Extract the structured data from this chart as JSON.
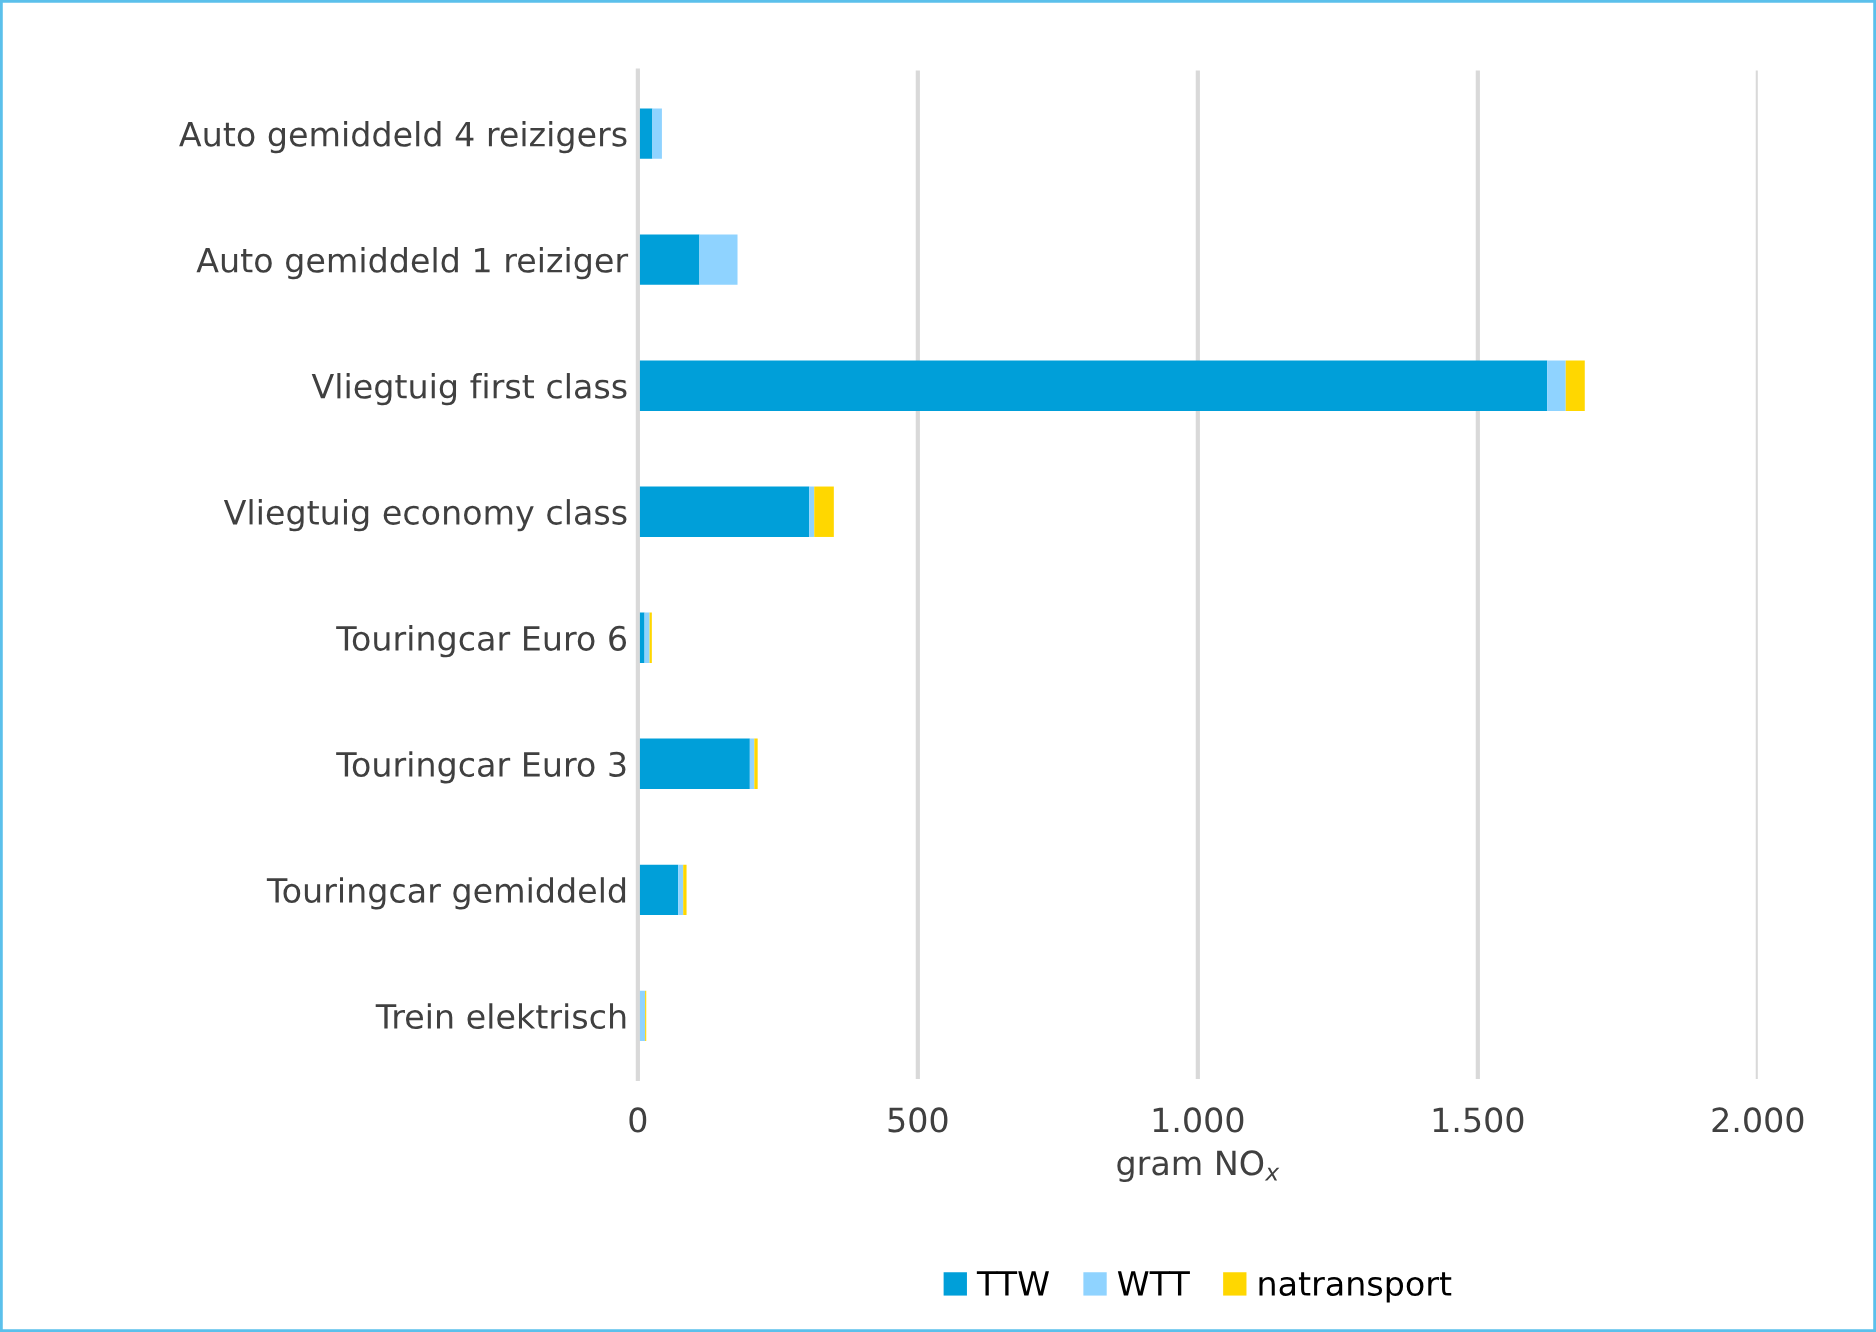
{
  "chart_data": {
    "type": "bar",
    "orientation": "horizontal",
    "stacked": true,
    "xlabel": "gram NO$_{x}$",
    "categories": [
      "Auto gemiddeld 4 reizigers",
      "Auto gemiddeld 1 reiziger",
      "Vliegtuig first class",
      "Vliegtuig economy class",
      "Touringcar Euro 6",
      "Touringcar Euro 3",
      "Touringcar gemiddeld",
      "Trein elektrisch"
    ],
    "series": [
      {
        "name": "TTW",
        "color": "#009fd9",
        "values": [
          26,
          110,
          1624,
          306,
          12,
          200,
          72,
          0
        ]
      },
      {
        "name": "WTT",
        "color": "#8fd3ff",
        "values": [
          17,
          68,
          33,
          9,
          9,
          8,
          9,
          13
        ]
      },
      {
        "name": "natransport",
        "color": "#ffd700",
        "values": [
          0,
          0,
          34,
          35,
          4,
          6,
          6,
          2
        ]
      }
    ],
    "xlim": [
      0,
      2000
    ],
    "xticks": [
      0,
      500,
      {
        "value": 1000,
        "label": "1.000"
      },
      {
        "value": 1500,
        "label": "1.500"
      },
      {
        "value": 2000,
        "label": "2.000"
      }
    ],
    "grid": "x",
    "legend": "bottom"
  }
}
